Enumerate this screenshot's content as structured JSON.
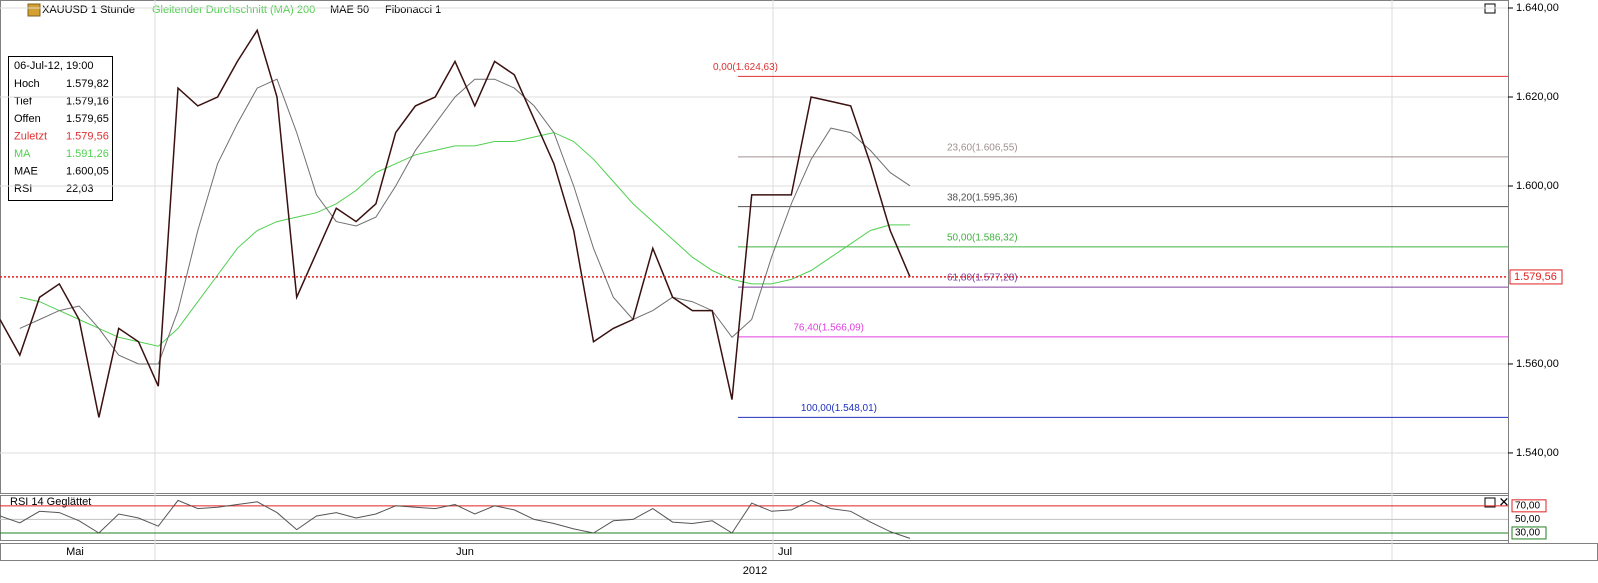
{
  "toolbar": {
    "symbol": "XAUUSD 1 Stunde",
    "ma": "Gleitender Durchschnitt (MA) 200",
    "mae": "MAE 50",
    "fib": "Fibonacci 1"
  },
  "info_box": {
    "date": "06-Jul-12, 19:00",
    "rows": [
      [
        "Hoch",
        "1.579,82"
      ],
      [
        "Tief",
        "1.579,16"
      ],
      [
        "Offen",
        "1.579,65"
      ],
      [
        "Zuletzt",
        "1.579,56"
      ],
      [
        "MA",
        "1.591,26"
      ],
      [
        "MAE",
        "1.600,05"
      ],
      [
        "RSI",
        "22,03"
      ]
    ]
  },
  "price_axis": {
    "lim": [
      1531,
      1641.8
    ],
    "ticks": [
      {
        "value": 1640,
        "label": "1.640,00"
      },
      {
        "value": 1620,
        "label": "1.620,00"
      },
      {
        "value": 1600,
        "label": "1.600,00"
      },
      {
        "value": 1560,
        "label": "1.560,00"
      },
      {
        "value": 1540,
        "label": "1.540,00"
      }
    ],
    "last": {
      "value": 1579.56,
      "label": "1.579,56"
    }
  },
  "fibonacci": {
    "levels": [
      {
        "price": 1624.63,
        "label": "0,00(1.624,63)",
        "color": "#e03030"
      },
      {
        "price": 1606.55,
        "label": "23,60(1.606,55)",
        "color": "#a09090"
      },
      {
        "price": 1595.36,
        "label": "38,20(1.595,36)",
        "color": "#505050"
      },
      {
        "price": 1586.32,
        "label": "50,00(1.586,32)",
        "color": "#40b040"
      },
      {
        "price": 1577.28,
        "label": "61,80(1.577,28)",
        "color": "#8040a0"
      },
      {
        "price": 1566.09,
        "label": "76,40(1.566,09)",
        "color": "#e040e0"
      },
      {
        "price": 1548.01,
        "label": "100,00(1.548,01)",
        "color": "#2030c0"
      }
    ]
  },
  "series": {
    "close": [
      1570,
      1562,
      1575,
      1578,
      1570,
      1548,
      1568,
      1565,
      1555,
      1622,
      1618,
      1620,
      1628,
      1635,
      1620,
      1575,
      1585,
      1595,
      1592,
      1596,
      1612,
      1618,
      1620,
      1628,
      1618,
      1628,
      1625,
      1615,
      1605,
      1590,
      1565,
      1568,
      1570,
      1586,
      1575,
      1572,
      1572,
      1552,
      1598,
      1598,
      1598,
      1620,
      1619,
      1618,
      1605,
      1590,
      1579.56
    ],
    "close_color": "#3a1010",
    "ma": [
      null,
      1575,
      1574,
      1572,
      1570,
      1568,
      1566,
      1565,
      1564,
      1568,
      1574,
      1580,
      1586,
      1590,
      1592,
      1593,
      1594,
      1596,
      1599,
      1603,
      1605,
      1607,
      1608,
      1609,
      1609,
      1610,
      1610,
      1611,
      1612,
      1610,
      1606,
      1601,
      1596,
      1592,
      1588,
      1584,
      1581,
      1579,
      1578,
      1578,
      1579,
      1581,
      1584,
      1587,
      1590,
      1591.26,
      1591.26
    ],
    "ma_color": "#50d050",
    "mae": [
      null,
      1568,
      1570,
      1572,
      1573,
      1568,
      1562,
      1560,
      1560,
      1572,
      1590,
      1605,
      1614,
      1622,
      1624,
      1612,
      1598,
      1592,
      1591,
      1593,
      1600,
      1608,
      1614,
      1620,
      1624,
      1624,
      1622,
      1618,
      1612,
      1600,
      1586,
      1575,
      1570,
      1572,
      1575,
      1574,
      1572,
      1566,
      1570,
      1584,
      1596,
      1606,
      1613,
      1612,
      1608,
      1603,
      1600.05
    ],
    "mae_color": "#707070"
  },
  "rsi": {
    "title": "RSI 14 Geglättet",
    "lim": [
      19.6,
      86
    ],
    "ticks": [
      {
        "value": 70,
        "label": "70,00"
      },
      {
        "value": 50,
        "label": "50,00"
      },
      {
        "value": 30,
        "label": "30,00"
      }
    ],
    "values": [
      55,
      45,
      62,
      60,
      48,
      30,
      58,
      52,
      40,
      78,
      66,
      68,
      72,
      76,
      60,
      35,
      55,
      60,
      52,
      58,
      70,
      68,
      66,
      72,
      58,
      70,
      64,
      50,
      44,
      36,
      30,
      48,
      50,
      66,
      46,
      44,
      48,
      30,
      74,
      62,
      64,
      78,
      66,
      62,
      46,
      32,
      22.03
    ]
  },
  "time_axis": {
    "months": [
      "Mai",
      "Jun",
      "Jul"
    ],
    "year": "2012"
  }
}
